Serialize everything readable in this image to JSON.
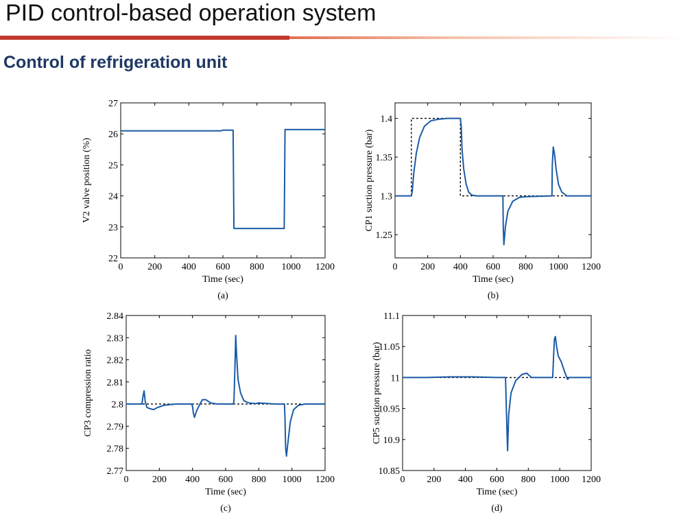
{
  "slide": {
    "title": "PID control-based operation system",
    "subtitle": "Control of refrigeration unit"
  },
  "colors": {
    "title_bar": "#c0392b",
    "subtitle": "#1f3864",
    "series_line": "#1a5aa6",
    "setpoint_line": "#000000"
  },
  "chart_data": [
    {
      "type": "line",
      "caption": "(a)",
      "title": "",
      "xlabel": "Time (sec)",
      "ylabel": "V2 valve position (%)",
      "xlim": [
        0,
        1200
      ],
      "ylim": [
        22,
        27
      ],
      "xticks": [
        0,
        200,
        400,
        600,
        800,
        1000,
        1200
      ],
      "yticks": [
        22,
        23,
        24,
        25,
        26,
        27
      ],
      "xtick_labels": [
        "0",
        "200",
        "400",
        "600",
        "800",
        "1000",
        "1200"
      ],
      "ytick_labels": [
        "22",
        "23",
        "24",
        "25",
        "26",
        "27"
      ],
      "series": [
        {
          "style": "solid",
          "x": [
            0,
            590,
            600,
            660,
            665,
            960,
            965,
            1200
          ],
          "y": [
            26.1,
            26.1,
            26.12,
            26.12,
            22.95,
            22.95,
            26.14,
            26.14
          ]
        }
      ]
    },
    {
      "type": "line",
      "caption": "(b)",
      "title": "",
      "xlabel": "Time (sec)",
      "ylabel": "CP1 suction pressure (bar)",
      "xlim": [
        0,
        1200
      ],
      "ylim": [
        1.22,
        1.42
      ],
      "xticks": [
        0,
        200,
        400,
        600,
        800,
        1000,
        1200
      ],
      "yticks": [
        1.25,
        1.3,
        1.35,
        1.4
      ],
      "xtick_labels": [
        "0",
        "200",
        "400",
        "600",
        "800",
        "1000",
        "1200"
      ],
      "ytick_labels": [
        "1.25",
        "1.3",
        "1.35",
        "1.4"
      ],
      "series": [
        {
          "style": "dashed",
          "x": [
            0,
            100,
            100,
            400,
            400,
            1200
          ],
          "y": [
            1.3,
            1.3,
            1.4,
            1.4,
            1.3,
            1.3
          ]
        },
        {
          "style": "solid",
          "x": [
            0,
            100,
            105,
            115,
            130,
            150,
            180,
            220,
            270,
            320,
            400,
            405,
            410,
            420,
            435,
            450,
            470,
            500,
            600,
            660,
            662,
            666,
            675,
            690,
            720,
            760,
            800,
            960,
            962,
            968,
            975,
            985,
            1000,
            1020,
            1050,
            1200
          ],
          "y": [
            1.3,
            1.3,
            1.305,
            1.33,
            1.355,
            1.375,
            1.39,
            1.397,
            1.399,
            1.4,
            1.4,
            1.39,
            1.36,
            1.335,
            1.315,
            1.305,
            1.301,
            1.3,
            1.3,
            1.3,
            1.26,
            1.237,
            1.26,
            1.28,
            1.293,
            1.298,
            1.299,
            1.3,
            1.34,
            1.363,
            1.355,
            1.335,
            1.315,
            1.305,
            1.3,
            1.3
          ]
        }
      ]
    },
    {
      "type": "line",
      "caption": "(c)",
      "title": "",
      "xlabel": "Time (sec)",
      "ylabel": "CP3 compression ratio",
      "xlim": [
        0,
        1200
      ],
      "ylim": [
        2.77,
        2.84
      ],
      "xticks": [
        0,
        200,
        400,
        600,
        800,
        1000,
        1200
      ],
      "yticks": [
        2.77,
        2.78,
        2.79,
        2.8,
        2.81,
        2.82,
        2.83,
        2.84
      ],
      "xtick_labels": [
        "0",
        "200",
        "400",
        "600",
        "800",
        "1000",
        "1200"
      ],
      "ytick_labels": [
        "2.77",
        "2.78",
        "2.79",
        "2.8",
        "2.81",
        "2.82",
        "2.83",
        "2.84"
      ],
      "series": [
        {
          "style": "dashed",
          "x": [
            0,
            1200
          ],
          "y": [
            2.8,
            2.8
          ]
        },
        {
          "style": "solid",
          "x": [
            0,
            95,
            100,
            108,
            115,
            125,
            140,
            165,
            190,
            230,
            300,
            395,
            400,
            405,
            412,
            425,
            445,
            460,
            480,
            510,
            550,
            600,
            645,
            650,
            656,
            661,
            666,
            675,
            690,
            710,
            740,
            780,
            800,
            900,
            955,
            958,
            962,
            967,
            975,
            990,
            1010,
            1040,
            1080,
            1200
          ],
          "y": [
            2.8,
            2.8,
            2.803,
            2.806,
            2.801,
            2.7985,
            2.798,
            2.7975,
            2.7985,
            2.7995,
            2.8,
            2.8,
            2.799,
            2.796,
            2.794,
            2.797,
            2.8,
            2.802,
            2.802,
            2.8005,
            2.8,
            2.8,
            2.8,
            2.801,
            2.816,
            2.831,
            2.822,
            2.811,
            2.805,
            2.8015,
            2.8005,
            2.8002,
            2.8005,
            2.8,
            2.8,
            2.794,
            2.78,
            2.7765,
            2.782,
            2.792,
            2.7975,
            2.7995,
            2.8,
            2.8
          ]
        }
      ]
    },
    {
      "type": "line",
      "caption": "(d)",
      "title": "",
      "xlabel": "Time (sec)",
      "ylabel": "CP5 suction pressure (bar)",
      "xlim": [
        0,
        1200
      ],
      "ylim": [
        10.85,
        11.1
      ],
      "xticks": [
        0,
        200,
        400,
        600,
        800,
        1000,
        1200
      ],
      "yticks": [
        10.85,
        10.9,
        10.95,
        11,
        11.05,
        11.1
      ],
      "xtick_labels": [
        "0",
        "200",
        "400",
        "600",
        "800",
        "1000",
        "1200"
      ],
      "ytick_labels": [
        "10.85",
        "10.9",
        "10.95",
        "11",
        "11.05",
        "11.1"
      ],
      "series": [
        {
          "style": "dashed",
          "x": [
            0,
            1200
          ],
          "y": [
            11.0,
            11.0
          ]
        },
        {
          "style": "solid",
          "x": [
            0,
            150,
            300,
            450,
            600,
            655,
            660,
            664,
            668,
            675,
            690,
            720,
            760,
            790,
            820,
            900,
            955,
            960,
            966,
            972,
            980,
            990,
            1000,
            1010,
            1030,
            1050,
            1060,
            1200
          ],
          "y": [
            11.0,
            11.0,
            11.001,
            11.001,
            11.0,
            11.0,
            10.95,
            10.915,
            10.882,
            10.94,
            10.975,
            10.995,
            11.005,
            11.007,
            11.0,
            11.0,
            11.0,
            11.03,
            11.062,
            11.066,
            11.05,
            11.035,
            11.03,
            11.025,
            11.01,
            10.997,
            11.0,
            11.0
          ]
        }
      ]
    }
  ]
}
